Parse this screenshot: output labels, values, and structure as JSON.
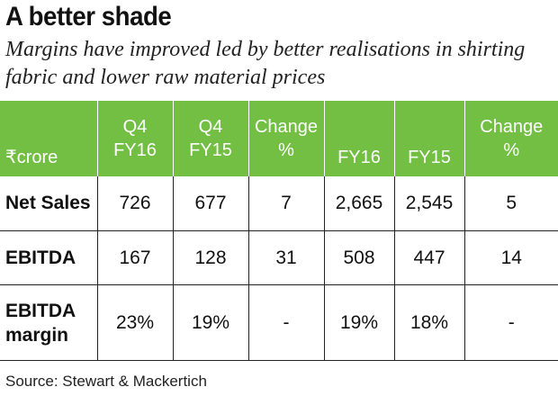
{
  "title": "A better shade",
  "subtitle": "Margins have improved led by better realisations in shirting fabric and lower raw material prices",
  "table": {
    "unit": "₹crore",
    "headers": [
      {
        "line1": "Q4",
        "line2": "FY16"
      },
      {
        "line1": "Q4",
        "line2": "FY15"
      },
      {
        "line1": "Change",
        "line2": "%"
      },
      {
        "line1": "",
        "line2": "FY16"
      },
      {
        "line1": "",
        "line2": "FY15"
      },
      {
        "line1": "Change",
        "line2": "%"
      }
    ],
    "rows": [
      {
        "label": "Net Sales",
        "values": [
          "726",
          "677",
          "7",
          "2,665",
          "2,545",
          "5"
        ]
      },
      {
        "label": "EBITDA",
        "values": [
          "167",
          "128",
          "31",
          "508",
          "447",
          "14"
        ]
      },
      {
        "label_line1": "EBITDA",
        "label_line2": "margin",
        "values": [
          "23%",
          "19%",
          "-",
          "19%",
          "18%",
          "-"
        ]
      }
    ]
  },
  "source": "Source: Stewart & Mackertich",
  "colors": {
    "header_bg": "#72bf44",
    "header_text": "#ffffff",
    "border": "#222222"
  }
}
